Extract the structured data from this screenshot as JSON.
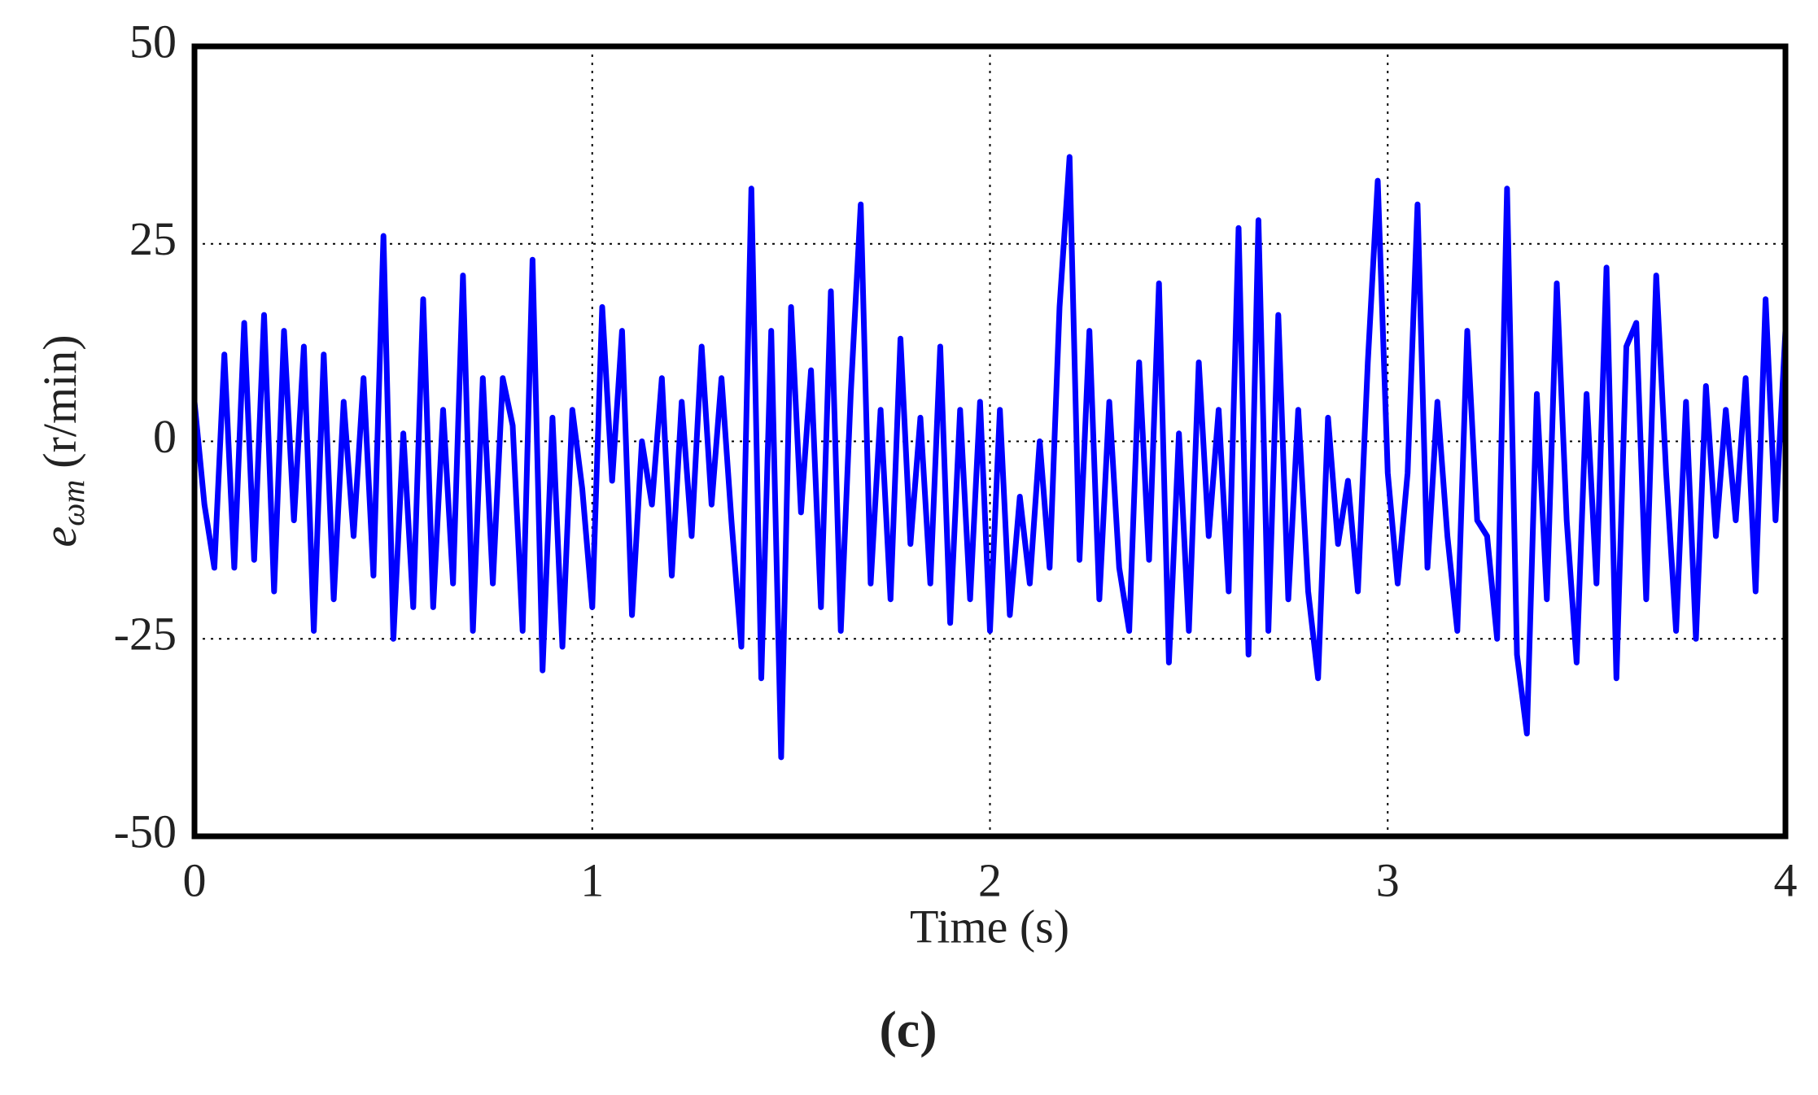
{
  "chart_data": {
    "type": "line",
    "caption": "(c)",
    "xlabel": "Time (s)",
    "ylabel": {
      "symbol": "e",
      "subscript": "ωm",
      "unit": "(r/min)"
    },
    "color": "#0000ff",
    "grid": true,
    "xlim": [
      0,
      4
    ],
    "xticks": [
      0,
      1,
      2,
      3,
      4
    ],
    "ylim": [
      -50,
      50
    ],
    "yticks": [
      -50,
      -25,
      0,
      25,
      50
    ],
    "x": [
      0,
      0.025,
      0.05,
      0.075,
      0.1,
      0.125,
      0.15,
      0.175,
      0.2,
      0.225,
      0.25,
      0.275,
      0.3,
      0.325,
      0.35,
      0.375,
      0.4,
      0.425,
      0.45,
      0.475,
      0.5,
      0.525,
      0.55,
      0.575,
      0.6,
      0.625,
      0.65,
      0.675,
      0.7,
      0.725,
      0.75,
      0.775,
      0.8,
      0.825,
      0.85,
      0.875,
      0.9,
      0.925,
      0.95,
      0.975,
      1,
      1.025,
      1.05,
      1.075,
      1.1,
      1.125,
      1.15,
      1.175,
      1.2,
      1.225,
      1.25,
      1.275,
      1.3,
      1.325,
      1.35,
      1.375,
      1.4,
      1.425,
      1.45,
      1.475,
      1.5,
      1.525,
      1.55,
      1.575,
      1.6,
      1.625,
      1.65,
      1.675,
      1.7,
      1.725,
      1.75,
      1.775,
      1.8,
      1.825,
      1.85,
      1.875,
      1.9,
      1.925,
      1.95,
      1.975,
      2,
      2.025,
      2.05,
      2.075,
      2.1,
      2.125,
      2.15,
      2.175,
      2.2,
      2.225,
      2.25,
      2.275,
      2.3,
      2.325,
      2.35,
      2.375,
      2.4,
      2.425,
      2.45,
      2.475,
      2.5,
      2.525,
      2.55,
      2.575,
      2.6,
      2.625,
      2.65,
      2.675,
      2.7,
      2.725,
      2.75,
      2.775,
      2.8,
      2.825,
      2.85,
      2.875,
      2.9,
      2.925,
      2.95,
      2.975,
      3,
      3.025,
      3.05,
      3.075,
      3.1,
      3.125,
      3.15,
      3.175,
      3.2,
      3.225,
      3.25,
      3.275,
      3.3,
      3.325,
      3.35,
      3.375,
      3.4,
      3.425,
      3.45,
      3.475,
      3.5,
      3.525,
      3.55,
      3.575,
      3.6,
      3.625,
      3.65,
      3.675,
      3.7,
      3.725,
      3.75,
      3.775,
      3.8,
      3.825,
      3.85,
      3.875,
      3.9,
      3.925,
      3.95,
      3.975,
      4
    ],
    "values": [
      5,
      -8,
      -16,
      11,
      -16,
      15,
      -15,
      16,
      -19,
      14,
      -10,
      12,
      -24,
      11,
      -20,
      5,
      -12,
      8,
      -17,
      26,
      -25,
      1,
      -21,
      18,
      -21,
      4,
      -18,
      21,
      -24,
      8,
      -18,
      8,
      2,
      -24,
      23,
      -29,
      3,
      -26,
      4,
      -6,
      -21,
      17,
      -5,
      14,
      -22,
      0,
      -8,
      8,
      -17,
      5,
      -12,
      12,
      -8,
      8,
      -10,
      -26,
      32,
      -30,
      14,
      -40,
      17,
      -9,
      9,
      -21,
      19,
      -24,
      6,
      30,
      -18,
      4,
      -20,
      13,
      -13,
      3,
      -18,
      12,
      -23,
      4,
      -20,
      5,
      -24,
      4,
      -22,
      -7,
      -18,
      0,
      -16,
      17,
      36,
      -15,
      14,
      -20,
      5,
      -16,
      -24,
      10,
      -15,
      20,
      -28,
      1,
      -24,
      10,
      -12,
      4,
      -19,
      27,
      -27,
      28,
      -24,
      16,
      -20,
      4,
      -19,
      -30,
      3,
      -13,
      -5,
      -19,
      10,
      33,
      -4,
      -18,
      -4,
      30,
      -16,
      5,
      -12,
      -24,
      14,
      -10,
      -12,
      -25,
      32,
      -27,
      -37,
      6,
      -20,
      20,
      -10,
      -28,
      6,
      -18,
      22,
      -30,
      12,
      15,
      -20,
      21,
      -4,
      -24,
      5,
      -25,
      7,
      -12,
      4,
      -10,
      8,
      -19,
      18,
      -10,
      14
    ]
  }
}
